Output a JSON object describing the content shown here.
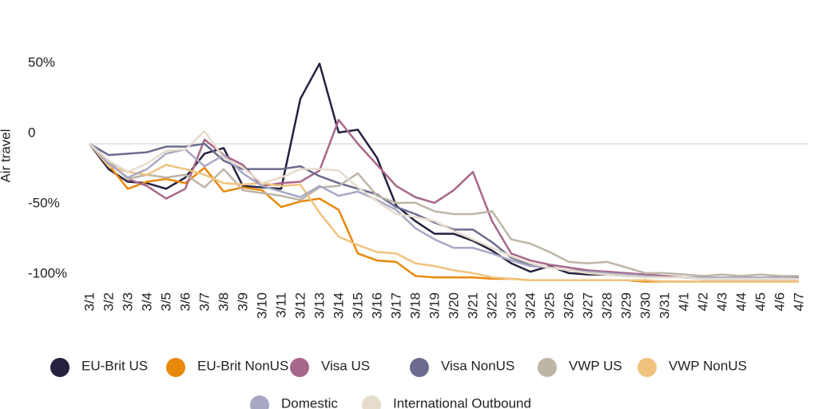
{
  "chart_data": {
    "type": "line",
    "y_label": "Air travel",
    "categories": [
      "3/1",
      "3/2",
      "3/3",
      "3/4",
      "3/5",
      "3/6",
      "3/7",
      "3/8",
      "3/9",
      "3/10",
      "3/11",
      "3/12",
      "3/13",
      "3/14",
      "3/15",
      "3/16",
      "3/17",
      "3/18",
      "3/19",
      "3/20",
      "3/21",
      "3/22",
      "3/23",
      "3/24",
      "3/25",
      "3/26",
      "3/27",
      "3/28",
      "3/29",
      "3/30",
      "3/31",
      "4/1",
      "4/2",
      "4/3",
      "4/4",
      "4/5",
      "4/6",
      "4/7"
    ],
    "ylim": [
      -110,
      60
    ],
    "yticks": [
      {
        "value": 50,
        "label": "50%"
      },
      0,
      {
        "value": -50,
        "label": "-50%"
      },
      {
        "value": -100,
        "label": "-100%"
      }
    ],
    "zero_line": true,
    "series": [
      {
        "name": "EU-Brit US",
        "color": "#25223f",
        "values": [
          0,
          -18,
          -27,
          -28,
          -32,
          -24,
          -7,
          -3,
          -30,
          -31,
          -32,
          32,
          57,
          8,
          10,
          -10,
          -44,
          -55,
          -64,
          -64,
          -69,
          -76,
          -85,
          -91,
          -87,
          -92,
          -93,
          -93,
          -94,
          -94,
          -95,
          -95,
          -96,
          -96,
          -96,
          -96,
          -96,
          -96
        ]
      },
      {
        "name": "EU-Brit NonUS",
        "color": "#e8890c",
        "values": [
          0,
          -15,
          -32,
          -27,
          -25,
          -28,
          -17,
          -34,
          -31,
          -33,
          -45,
          -41,
          -39,
          -47,
          -78,
          -83,
          -84,
          -94,
          -95,
          -95,
          -95,
          -96,
          -96,
          -97,
          -97,
          -97,
          -97,
          -97,
          -97,
          -98,
          -98,
          -98,
          -98,
          -98,
          -98,
          -98,
          -98,
          -98
        ]
      },
      {
        "name": "Visa US",
        "color": "#a8678a",
        "values": [
          0,
          -12,
          -25,
          -30,
          -39,
          -32,
          3,
          -8,
          -15,
          -30,
          -28,
          -27,
          -19,
          17,
          0,
          -15,
          -30,
          -38,
          -42,
          -33,
          -20,
          -55,
          -78,
          -83,
          -86,
          -88,
          -90,
          -91,
          -92,
          -93,
          -94,
          -95,
          -95,
          -95,
          -96,
          -96,
          -96,
          -96
        ]
      },
      {
        "name": "Visa NonUS",
        "color": "#6b6b8f",
        "values": [
          0,
          -8,
          -7,
          -6,
          -2,
          -2,
          0,
          -12,
          -18,
          -18,
          -18,
          -16,
          -23,
          -28,
          -32,
          -36,
          -45,
          -50,
          -56,
          -61,
          -61,
          -70,
          -81,
          -86,
          -88,
          -90,
          -91,
          -92,
          -93,
          -94,
          -95,
          -95,
          -95,
          -95,
          -95,
          -95,
          -95,
          -95
        ]
      },
      {
        "name": "VWP US",
        "color": "#bdb5a6",
        "values": [
          0,
          -12,
          -25,
          -22,
          -24,
          -22,
          -31,
          -18,
          -33,
          -35,
          -37,
          -40,
          -31,
          -30,
          -21,
          -37,
          -42,
          -42,
          -48,
          -50,
          -50,
          -48,
          -68,
          -71,
          -77,
          -84,
          -85,
          -84,
          -88,
          -92,
          -92,
          -93,
          -94,
          -93,
          -94,
          -93,
          -94,
          -94
        ]
      },
      {
        "name": "VWP NonUS",
        "color": "#f0c27e",
        "values": [
          0,
          -16,
          -20,
          -22,
          -15,
          -18,
          -22,
          -28,
          -29,
          -28,
          -30,
          -29,
          -49,
          -66,
          -72,
          -77,
          -78,
          -85,
          -87,
          -90,
          -92,
          -95,
          -96,
          -97,
          -97,
          -97,
          -97,
          -97,
          -97,
          -97,
          -98,
          -98,
          -98,
          -98,
          -98,
          -98,
          -98,
          -98
        ]
      },
      {
        "name": "Domestic",
        "color": "#a8a7c4",
        "values": [
          0,
          -14,
          -24,
          -18,
          -7,
          -4,
          -16,
          -8,
          -21,
          -30,
          -34,
          -38,
          -30,
          -37,
          -34,
          -40,
          -47,
          -60,
          -68,
          -74,
          -74,
          -78,
          -83,
          -87,
          -88,
          -90,
          -91,
          -92,
          -93,
          -94,
          -95,
          -95,
          -95,
          -95,
          -95,
          -95,
          -95,
          -96
        ]
      },
      {
        "name": "International Outbound",
        "color": "#e6dccc",
        "values": [
          0,
          -12,
          -20,
          -14,
          -5,
          -4,
          9,
          -10,
          -17,
          -28,
          -24,
          -18,
          -18,
          -19,
          -31,
          -41,
          -50,
          -52,
          -55,
          -62,
          -68,
          -74,
          -80,
          -85,
          -88,
          -90,
          -92,
          -93,
          -94,
          -95,
          -95,
          -95,
          -96,
          -96,
          -96,
          -96,
          -96,
          -96
        ]
      }
    ]
  }
}
